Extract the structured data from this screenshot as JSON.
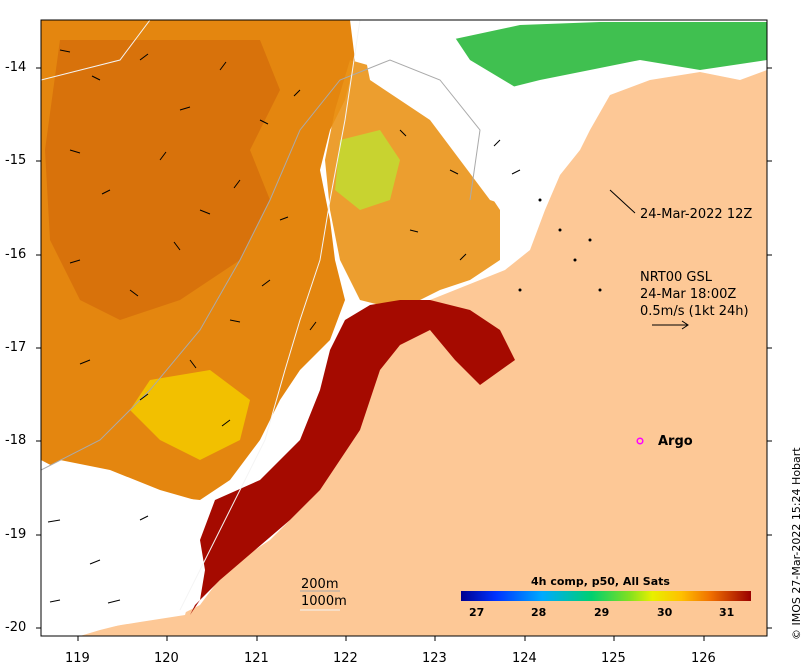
{
  "map": {
    "y_ticks": [
      "-14",
      "-15",
      "-16",
      "-17",
      "-18",
      "-19",
      "-20"
    ],
    "x_ticks": [
      "119",
      "120",
      "121",
      "122",
      "123",
      "124",
      "125",
      "126"
    ],
    "lon_range": [
      118.6,
      126.7
    ],
    "lat_range": [
      -20.1,
      -13.5
    ]
  },
  "annotations": {
    "timestamp": "24-Mar-2022 12Z",
    "current_source": "NRT00 GSL",
    "current_time": "24-Mar 18:00Z",
    "current_scale": "0.5m/s (1kt 24h)",
    "argo_label": "Argo",
    "isobath_200": "200m",
    "isobath_1000": "1000m"
  },
  "colorbar": {
    "title": "4h comp, p50, All Sats",
    "ticks": [
      "27",
      "28",
      "29",
      "30",
      "31"
    ],
    "range": [
      26.6,
      31.6
    ]
  },
  "credit": "© IMOS 27-Mar-2022 15:24 Hobart",
  "colors": {
    "land": "#fdc896",
    "argo": "#ff00ff",
    "hot": "#a50a00",
    "warm": "#e07a10"
  }
}
